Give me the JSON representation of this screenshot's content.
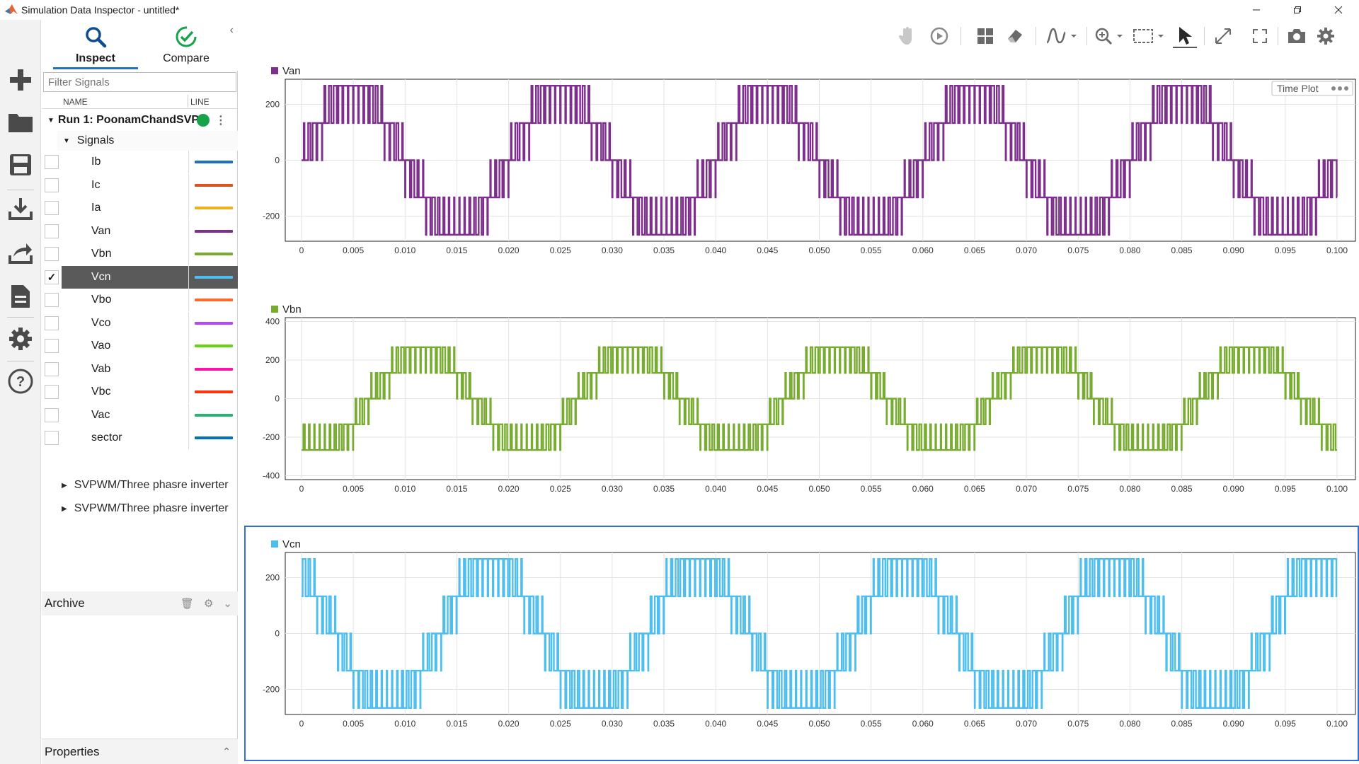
{
  "window": {
    "title": "Simulation Data Inspector - untitled*"
  },
  "tabs": {
    "inspect": "Inspect",
    "compare": "Compare"
  },
  "filter": {
    "placeholder": "Filter Signals"
  },
  "columns": {
    "name": "NAME",
    "line": "LINE"
  },
  "run": {
    "label": "Run 1: PoonamChandSVP",
    "status_color": "#16a34a"
  },
  "signals_group": {
    "label": "Signals"
  },
  "signals": [
    {
      "name": "Ib",
      "color": "#1f6fc4",
      "checked": false
    },
    {
      "name": "Ic",
      "color": "#d9541e",
      "checked": false
    },
    {
      "name": "Ia",
      "color": "#edb120",
      "checked": false
    },
    {
      "name": "Van",
      "color": "#7e2f8e",
      "checked": false
    },
    {
      "name": "Vbn",
      "color": "#77ac30",
      "checked": false
    },
    {
      "name": "Vcn",
      "color": "#4dbeee",
      "checked": true
    },
    {
      "name": "Vbo",
      "color": "#ff6929",
      "checked": false
    },
    {
      "name": "Vco",
      "color": "#b746ff",
      "checked": false
    },
    {
      "name": "Vao",
      "color": "#64d413",
      "checked": false
    },
    {
      "name": "Vab",
      "color": "#ff13a6",
      "checked": false
    },
    {
      "name": "Vbc",
      "color": "#fe330a",
      "checked": false
    },
    {
      "name": "Vac",
      "color": "#22b573",
      "checked": false
    },
    {
      "name": "sector",
      "color": "#0072bd",
      "checked": false
    }
  ],
  "groups": [
    {
      "label": "SVPWM/Three phasre inverter"
    },
    {
      "label": "SVPWM/Three phasre inverter"
    }
  ],
  "archive": {
    "label": "Archive"
  },
  "properties": {
    "label": "Properties"
  },
  "plot_badge": {
    "label": "Time Plot"
  },
  "chart_data": [
    {
      "type": "line",
      "series": [
        {
          "name": "Van",
          "color": "#7e2f8e"
        }
      ],
      "levels": [
        -266.7,
        -133.3,
        0,
        133.3,
        266.7
      ],
      "fundamental_freq_hz": 50,
      "phase_deg": 0,
      "pwm": "square-stepped",
      "x_range": [
        0,
        0.1
      ],
      "ylim": [
        -290,
        290
      ],
      "yticks": [
        -200,
        0,
        200
      ],
      "xticks": [
        "0",
        "0.005",
        "0.010",
        "0.015",
        "0.020",
        "0.025",
        "0.030",
        "0.035",
        "0.040",
        "0.045",
        "0.050",
        "0.055",
        "0.060",
        "0.065",
        "0.070",
        "0.075",
        "0.080",
        "0.085",
        "0.090",
        "0.095",
        "0.100"
      ],
      "grid": true
    },
    {
      "type": "line",
      "series": [
        {
          "name": "Vbn",
          "color": "#77ac30"
        }
      ],
      "levels": [
        -266.7,
        -133.3,
        0,
        133.3,
        266.7
      ],
      "fundamental_freq_hz": 50,
      "phase_deg": -120,
      "x_range": [
        0,
        0.1
      ],
      "ylim": [
        -420,
        420
      ],
      "yticks": [
        -400,
        -200,
        0,
        200,
        400
      ],
      "xticks": [
        "0",
        "0.005",
        "0.010",
        "0.015",
        "0.020",
        "0.025",
        "0.030",
        "0.035",
        "0.040",
        "0.045",
        "0.050",
        "0.055",
        "0.060",
        "0.065",
        "0.070",
        "0.075",
        "0.080",
        "0.085",
        "0.090",
        "0.095",
        "0.100"
      ],
      "grid": true
    },
    {
      "type": "line",
      "series": [
        {
          "name": "Vcn",
          "color": "#4dbeee"
        }
      ],
      "levels": [
        -266.7,
        -133.3,
        0,
        133.3,
        266.7
      ],
      "fundamental_freq_hz": 50,
      "phase_deg": 120,
      "x_range": [
        0,
        0.1
      ],
      "ylim": [
        -290,
        290
      ],
      "yticks": [
        -200,
        0,
        200
      ],
      "xticks": [
        "0",
        "0.005",
        "0.010",
        "0.015",
        "0.020",
        "0.025",
        "0.030",
        "0.035",
        "0.040",
        "0.045",
        "0.050",
        "0.055",
        "0.060",
        "0.065",
        "0.070",
        "0.075",
        "0.080",
        "0.085",
        "0.090",
        "0.095",
        "0.100"
      ],
      "grid": true,
      "selected": true
    }
  ]
}
